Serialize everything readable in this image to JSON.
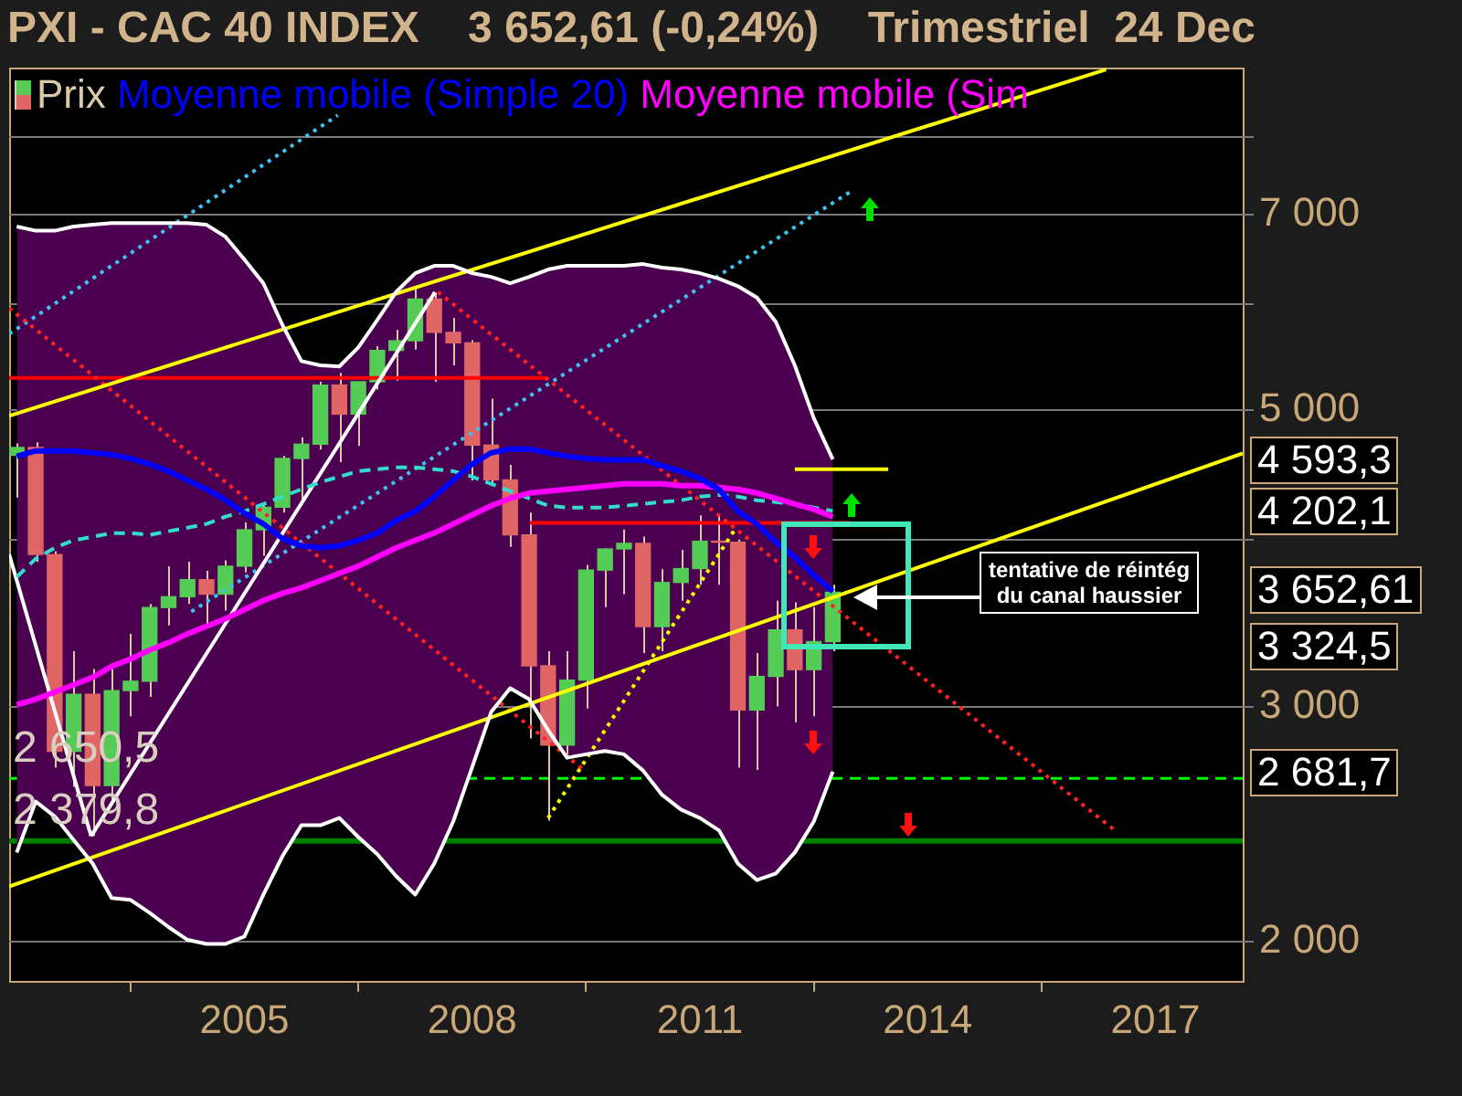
{
  "chart_data": {
    "type": "candlestick",
    "title": "PXI - CAC 40 INDEX    3 652,61 (-0,24%)    Trimestriel  24 Dec",
    "x": [
      2002,
      2002.25,
      2002.5,
      2002.75,
      2003,
      2003.25,
      2003.5,
      2003.75,
      2004,
      2004.25,
      2004.5,
      2004.75,
      2005,
      2005.25,
      2005.5,
      2005.75,
      2006,
      2006.25,
      2006.5,
      2006.75,
      2007,
      2007.25,
      2007.5,
      2007.75,
      2008,
      2008.25,
      2008.5,
      2008.75,
      2009,
      2009.25,
      2009.5,
      2009.75,
      2010,
      2010.25,
      2010.5,
      2010.75,
      2011,
      2011.25,
      2011.5,
      2011.75,
      2012,
      2012.25,
      2012.5,
      2012.75
    ],
    "xlim": [
      2001.9,
      2018.15
    ],
    "xticks": [
      2005,
      2008,
      2011,
      2014,
      2017
    ],
    "ylim": [
      1870,
      9020
    ],
    "yticks": [
      {
        "value": 2000,
        "label": "2 000"
      },
      {
        "value": 3000,
        "label": "3 000"
      },
      {
        "value": 4000,
        "label": null
      },
      {
        "value": 5000,
        "label": "5 000"
      },
      {
        "value": 6000,
        "label": null
      },
      {
        "value": 7000,
        "label": "7 000"
      },
      {
        "value": 8000,
        "label": null
      }
    ],
    "log": "y",
    "grid": "y",
    "legend": "top left",
    "series": [
      {
        "type": "candlestick",
        "name": "Prix",
        "color": "#d9c9a8",
        "colors": [
          "#55cc55",
          "#e06666",
          "#e06666",
          "#55cc55",
          "#e06666",
          "#55cc55",
          "#55cc55",
          "#55cc55",
          "#55cc55",
          "#55cc55",
          "#e06666",
          "#55cc55",
          "#55cc55",
          "#55cc55",
          "#55cc55",
          "#55cc55",
          "#55cc55",
          "#e06666",
          "#55cc55",
          "#55cc55",
          "#55cc55",
          "#55cc55",
          "#e06666",
          "#e06666",
          "#e06666",
          "#e06666",
          "#e06666",
          "#e06666",
          "#e06666",
          "#55cc55",
          "#55cc55",
          "#55cc55",
          "#55cc55",
          "#e06666",
          "#55cc55",
          "#55cc55",
          "#55cc55",
          "#e06666",
          "#e06666",
          "#55cc55",
          "#55cc55",
          "#e06666",
          "#55cc55",
          "#55cc55"
        ],
        "ohlc": [
          [
            4625,
            4720,
            4300,
            4688
          ],
          [
            4688,
            4730,
            3850,
            3898
          ],
          [
            3898,
            3920,
            2700,
            2777
          ],
          [
            2777,
            3300,
            2612,
            3064
          ],
          [
            3064,
            3200,
            2401,
            2618
          ],
          [
            2618,
            3200,
            2550,
            3084
          ],
          [
            3084,
            3400,
            2950,
            3134
          ],
          [
            3134,
            3580,
            3050,
            3558
          ],
          [
            3558,
            3820,
            3450,
            3625
          ],
          [
            3625,
            3850,
            3580,
            3733
          ],
          [
            3733,
            3790,
            3460,
            3641
          ],
          [
            3641,
            3860,
            3540,
            3821
          ],
          [
            3821,
            4120,
            3780,
            4068
          ],
          [
            4068,
            4250,
            3890,
            4229
          ],
          [
            4229,
            4620,
            4190,
            4600
          ],
          [
            4600,
            4770,
            4250,
            4715
          ],
          [
            4715,
            5250,
            4670,
            5220
          ],
          [
            5220,
            5330,
            4570,
            4965
          ],
          [
            4965,
            5250,
            4700,
            5250
          ],
          [
            5250,
            5580,
            5180,
            5541
          ],
          [
            5541,
            5740,
            5260,
            5634
          ],
          [
            5634,
            6170,
            5550,
            6054
          ],
          [
            6054,
            6120,
            5250,
            5716
          ],
          [
            5716,
            5860,
            5400,
            5614
          ],
          [
            5614,
            5640,
            4430,
            4707
          ],
          [
            4707,
            5100,
            4400,
            4434
          ],
          [
            4434,
            4550,
            3950,
            4032
          ],
          [
            4032,
            4190,
            2840,
            3218
          ],
          [
            3218,
            3300,
            2465,
            2807
          ],
          [
            2807,
            3300,
            2740,
            3140
          ],
          [
            3140,
            3830,
            2990,
            3795
          ],
          [
            3795,
            3940,
            3560,
            3936
          ],
          [
            3936,
            4070,
            3640,
            3974
          ],
          [
            3974,
            4020,
            3290,
            3443
          ],
          [
            3443,
            3800,
            3300,
            3715
          ],
          [
            3715,
            3930,
            3600,
            3805
          ],
          [
            3805,
            4170,
            3700,
            3989
          ],
          [
            3989,
            4170,
            3700,
            3982
          ],
          [
            3982,
            4000,
            2700,
            2982
          ],
          [
            2982,
            3290,
            2690,
            3160
          ],
          [
            3160,
            3600,
            3000,
            3424
          ],
          [
            3424,
            3590,
            2920,
            3197
          ],
          [
            3197,
            3560,
            2950,
            3355
          ],
          [
            3355,
            3700,
            3300,
            3652.61
          ]
        ]
      },
      {
        "type": "line",
        "name": "Moyenne mobile (Simple 20)",
        "color": "#0000ff",
        "values": [
          4617,
          4660,
          4660,
          4660,
          4645,
          4630,
          4600,
          4556,
          4500,
          4430,
          4362,
          4282,
          4187,
          4109,
          4007,
          3957,
          3944,
          3957,
          3995,
          4045,
          4135,
          4200,
          4307,
          4430,
          4556,
          4645,
          4675,
          4675,
          4645,
          4617,
          4600,
          4589,
          4589,
          4589,
          4542,
          4500,
          4444,
          4362,
          4200,
          4109,
          3982,
          3882,
          3762,
          3658
        ],
        "lower": [
          2333,
          2547,
          2483,
          2384,
          2289,
          2157,
          2150,
          2103,
          2052,
          2007,
          1993,
          1993,
          2019,
          2170,
          2318,
          2445,
          2445,
          2476,
          2396,
          2326,
          2239,
          2170,
          2289,
          2461,
          2703,
          2972,
          3096,
          3038,
          2880,
          2747,
          2763,
          2779,
          2763,
          2687,
          2577,
          2512,
          2476,
          2424,
          2289,
          2225,
          2250,
          2333,
          2461,
          2681.7
        ],
        "upper": [
          6860,
          6810,
          6810,
          6860,
          6880,
          6900,
          6900,
          6900,
          6900,
          6900,
          6880,
          6740,
          6480,
          6220,
          5790,
          5440,
          5400,
          5390,
          5570,
          5840,
          6130,
          6330,
          6410,
          6410,
          6330,
          6290,
          6220,
          6290,
          6370,
          6410,
          6410,
          6410,
          6410,
          6430,
          6390,
          6370,
          6330,
          6270,
          6190,
          6070,
          5820,
          5400,
          4930,
          4593.3
        ]
      },
      {
        "type": "line",
        "color": "#ffffff",
        "values": [
          6860,
          6810,
          6810,
          6860,
          6880,
          6900,
          6900,
          6900,
          6900,
          6900,
          6880,
          6740,
          6480,
          6220,
          5790,
          5440,
          5400,
          5390,
          5570,
          5840,
          6130,
          6330,
          6410,
          6410,
          6330,
          6290,
          6220,
          6290,
          6370,
          6410,
          6410,
          6410,
          6410,
          6430,
          6390,
          6370,
          6330,
          6270,
          6190,
          6070,
          5820,
          5400,
          4930,
          4593.3
        ]
      },
      {
        "type": "line",
        "color": "#ffffff",
        "values": [
          2333,
          2547,
          2483,
          2384,
          2289,
          2157,
          2150,
          2103,
          2052,
          2007,
          1993,
          1993,
          2019,
          2170,
          2318,
          2445,
          2445,
          2476,
          2396,
          2326,
          2239,
          2170,
          2289,
          2461,
          2703,
          2972,
          3096,
          3038,
          2880,
          2747,
          2763,
          2779,
          2763,
          2687,
          2577,
          2512,
          2476,
          2424,
          2289,
          2225,
          2250,
          2333,
          2461,
          2681.7
        ]
      },
      {
        "type": "line",
        "name": "Moyenne mobile (Sim",
        "color": "#ff00ff",
        "values": [
          3009,
          3038,
          3076,
          3115,
          3155,
          3215,
          3256,
          3307,
          3349,
          3401,
          3445,
          3490,
          3545,
          3601,
          3646,
          3681,
          3727,
          3774,
          3821,
          3882,
          3944,
          3995,
          4045,
          4109,
          4174,
          4240,
          4294,
          4334,
          4348,
          4362,
          4375,
          4389,
          4403,
          4403,
          4403,
          4389,
          4389,
          4375,
          4362,
          4334,
          4294,
          4253,
          4214,
          4161
        ]
      },
      {
        "type": "line",
        "color": "#33ddcc",
        "line_style": "dashed",
        "values": [
          3750,
          3870,
          3944,
          3995,
          4020,
          4045,
          4045,
          4032,
          4058,
          4083,
          4109,
          4161,
          4200,
          4253,
          4307,
          4362,
          4416,
          4458,
          4500,
          4515,
          4530,
          4530,
          4515,
          4500,
          4458,
          4403,
          4348,
          4294,
          4240,
          4227,
          4227,
          4227,
          4240,
          4253,
          4267,
          4280,
          4307,
          4320,
          4307,
          4280,
          4267,
          4253,
          4227,
          4202.1
        ]
      },
      {
        "type": "line",
        "color": "#ffff00",
        "x": [
          2001.9,
          2016.35
        ],
        "values": [
          4950,
          8990
        ]
      },
      {
        "type": "line",
        "color": "#ffff00",
        "x": [
          2001.9,
          2018.15
        ],
        "values": [
          2200,
          4640
        ]
      },
      {
        "type": "line",
        "color": "#ffffff",
        "x": [
          2001.9,
          2002.98
        ],
        "values": [
          3900,
          2400
        ]
      },
      {
        "type": "line",
        "color": "#ffffff",
        "x": [
          2002.98,
          2007.51
        ],
        "values": [
          2400,
          6126
        ]
      },
      {
        "type": "line",
        "color": "#ff2020",
        "line_style": "dotted",
        "x": [
          2001.9,
          2009.48
        ],
        "values": [
          5960,
          2687
        ]
      },
      {
        "type": "line",
        "color": "#ff2020",
        "line_style": "dotted",
        "x": [
          2007.55,
          2016.47
        ],
        "values": [
          6126,
          2423
        ]
      },
      {
        "type": "line",
        "color": "#40c0f0",
        "line_style": "dotted",
        "x": [
          2001.9,
          2006.23
        ],
        "values": [
          5700,
          8310
        ]
      },
      {
        "type": "line",
        "color": "#40c0f0",
        "line_style": "dotted",
        "x": [
          2004.3,
          2012.98
        ],
        "values": [
          3533,
          7282
        ]
      },
      {
        "type": "line",
        "color": "#ffff00",
        "line_style": "dotted",
        "x": [
          2009.0,
          2011.46
        ],
        "values": [
          2476,
          4070
        ]
      },
      {
        "type": "line",
        "color": "#ff0000",
        "x": [
          2001.9,
          2009.0
        ],
        "values": [
          5284,
          5284
        ]
      },
      {
        "type": "line",
        "color": "#ff0000",
        "x": [
          2008.76,
          2012.98
        ],
        "values": [
          4116,
          4116
        ]
      },
      {
        "type": "line",
        "color": "#ffff00",
        "x": [
          2012.25,
          2013.48
        ],
        "values": [
          4515,
          4515
        ]
      }
    ],
    "ref_lines": [
      {
        "axis": "y",
        "value": 2650.5,
        "label": "2 650,5",
        "color": "#00ff00",
        "line_style": "dashed"
      },
      {
        "axis": "y",
        "value": 2379.8,
        "label": "2 379,8",
        "color": "#008000"
      }
    ],
    "annotations": [
      "4 593,3",
      "4 202,1",
      "3 652,61",
      "3 324,5",
      "2 681,7",
      "tentative de réintég\ndu canal haussier"
    ]
  }
}
